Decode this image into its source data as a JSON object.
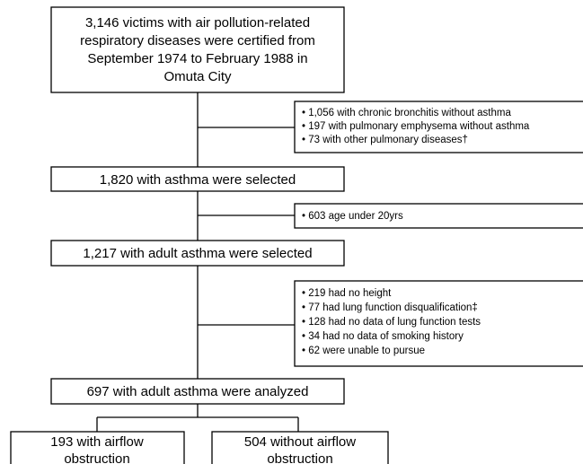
{
  "nodes": [
    {
      "lines": [
        "3,146 victims with air pollution-related",
        "respiratory diseases were certified from",
        "September 1974 to February 1988 in",
        "Omuta City"
      ]
    },
    {
      "lines": [
        "1,820 with asthma were selected"
      ]
    },
    {
      "lines": [
        "1,217 with adult asthma were selected"
      ]
    },
    {
      "lines": [
        "697 with adult asthma were analyzed"
      ]
    },
    {
      "lines": [
        "193 with airflow",
        "obstruction"
      ]
    },
    {
      "lines": [
        "504 without airflow",
        "obstruction"
      ]
    }
  ],
  "exclusions": [
    {
      "items": [
        "• 1,056 with chronic bronchitis without asthma",
        "• 197 with pulmonary emphysema without asthma",
        "• 73 with other pulmonary  diseases†"
      ]
    },
    {
      "items": [
        "• 603 age under 20yrs"
      ]
    },
    {
      "items": [
        "• 219 had no height",
        "• 77 had lung function disqualification‡",
        "• 128 had no data of lung function tests",
        "• 34 had no data of smoking history",
        "• 62 were unable to pursue"
      ]
    }
  ]
}
